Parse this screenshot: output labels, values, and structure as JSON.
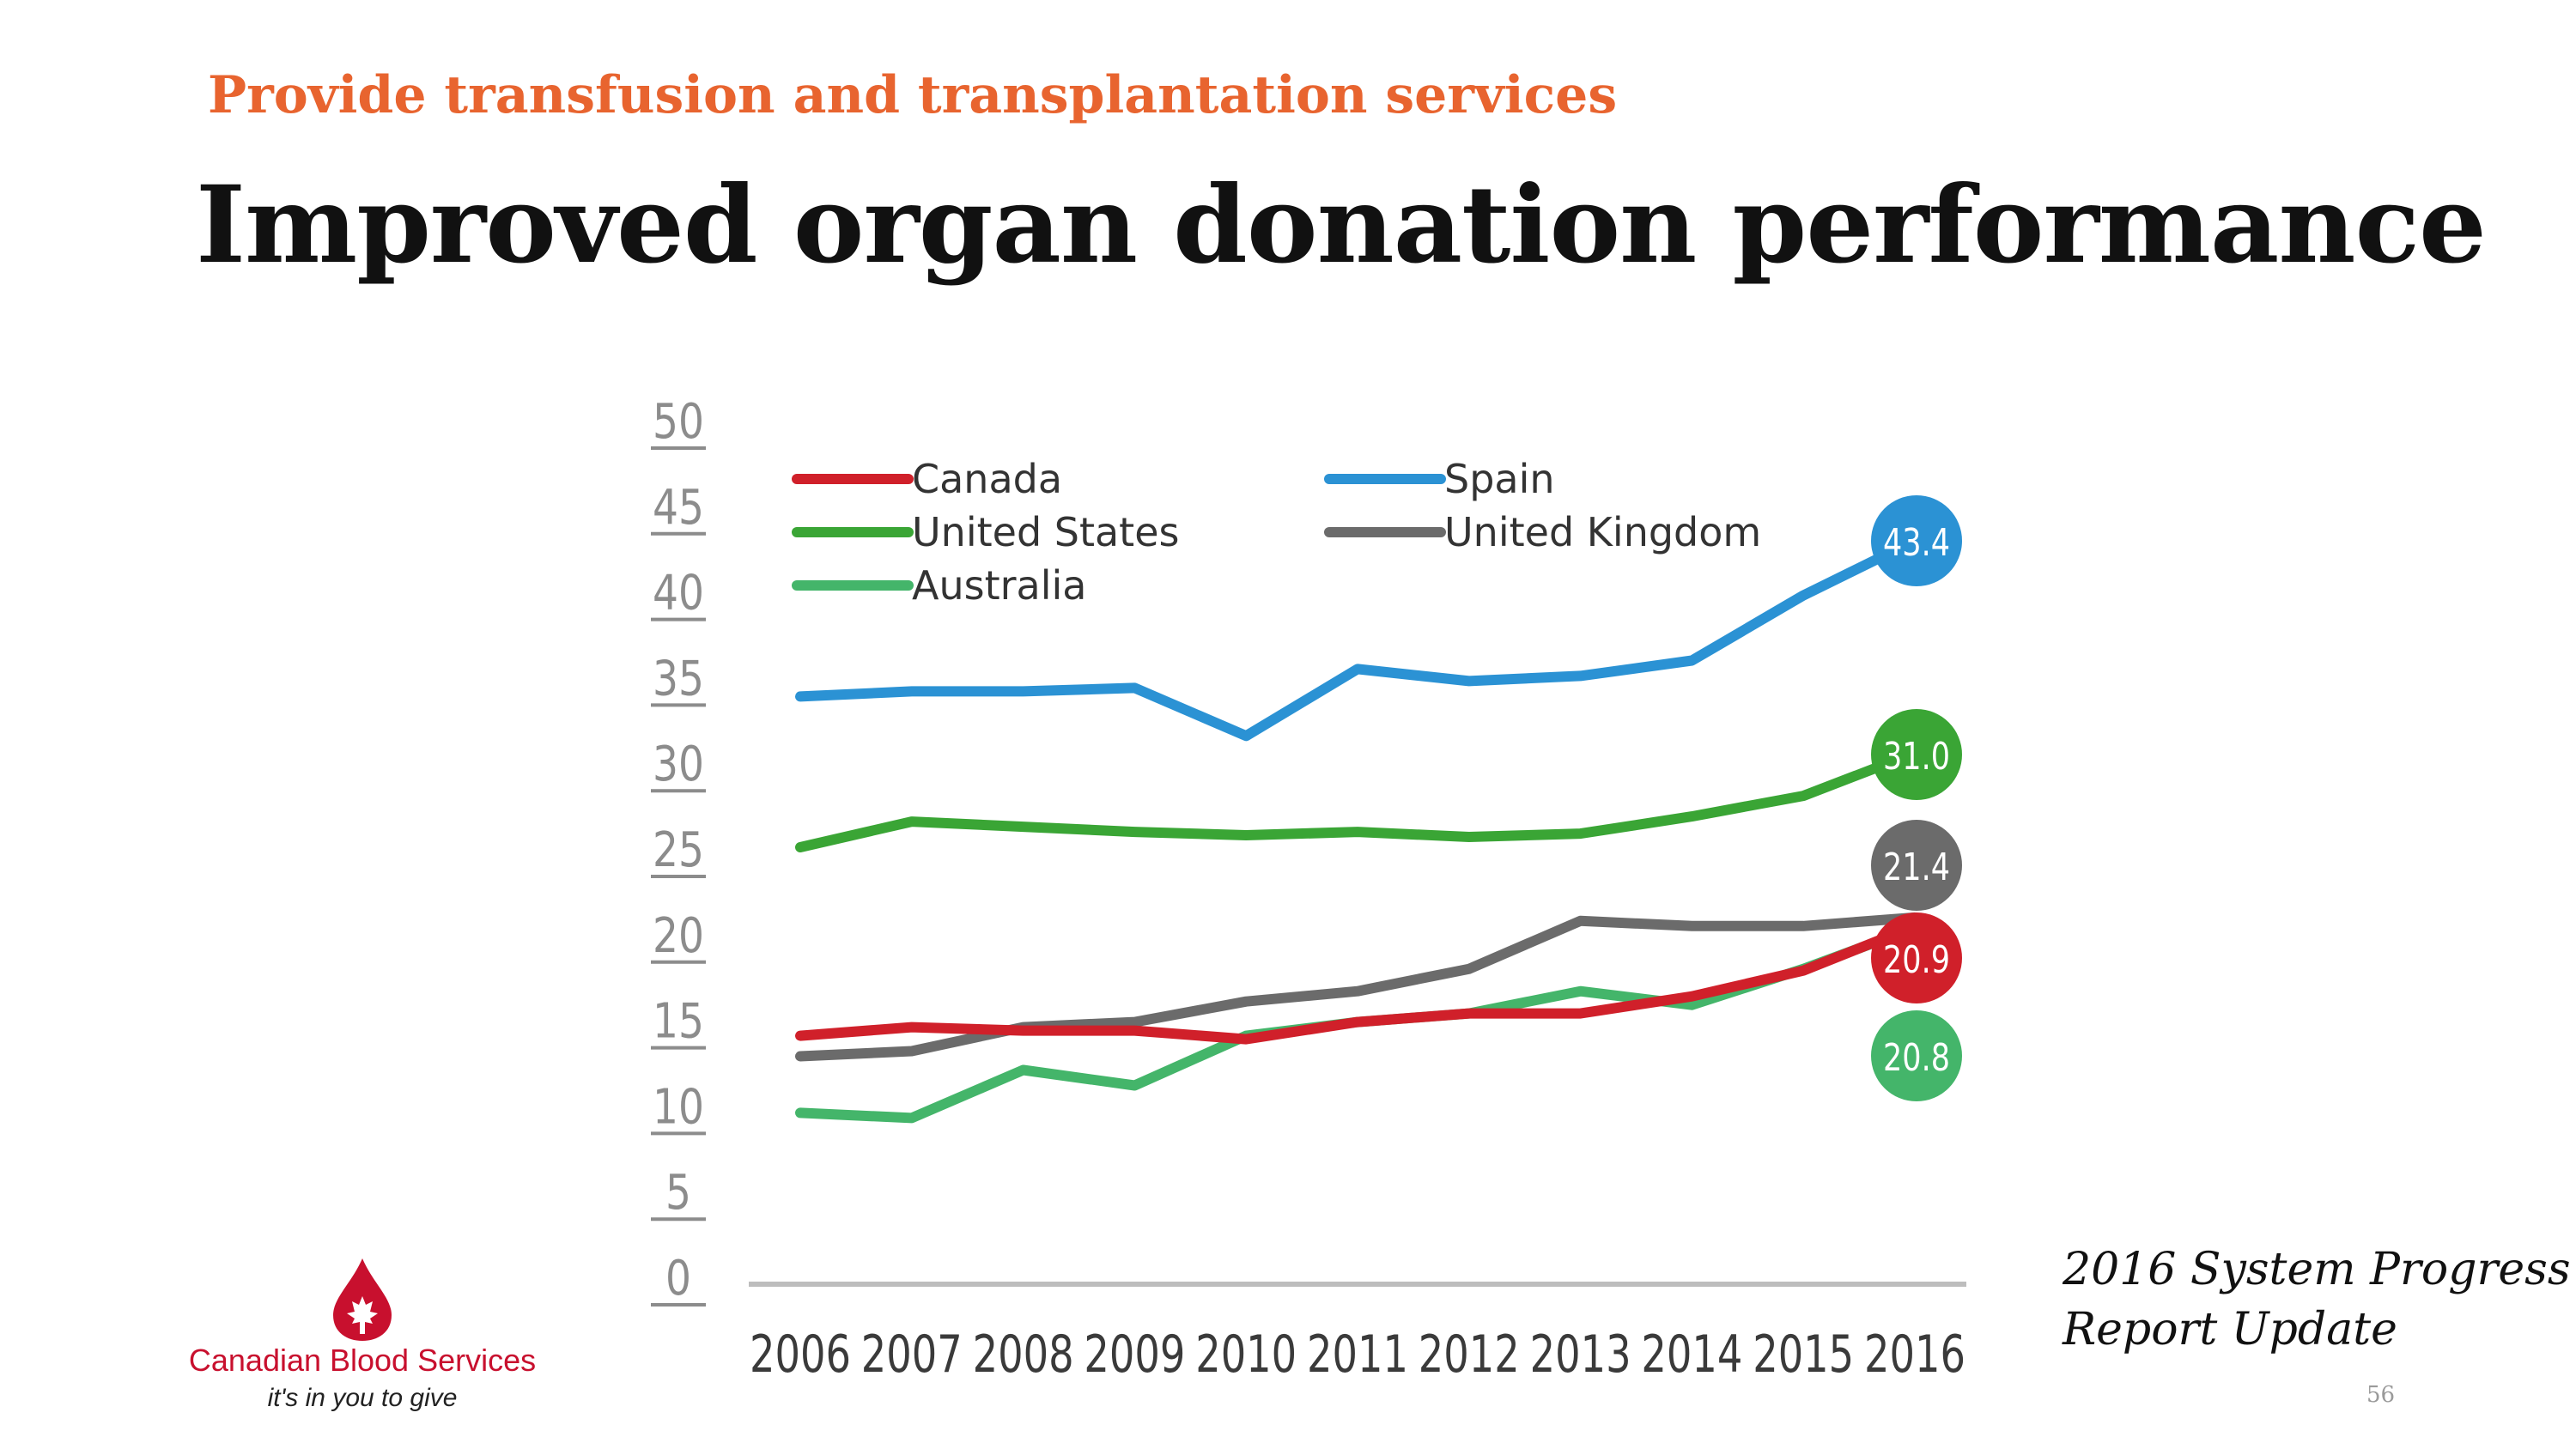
{
  "header": {
    "subtitle": "Provide transfusion and transplantation services",
    "title": "Improved organ donation performance"
  },
  "footer": {
    "report_line1": "2016 System Progress",
    "report_line2": "Report Update",
    "page_number": "56"
  },
  "logo": {
    "name": "Canadian Blood Services",
    "tagline": "it's in you to give",
    "icon": "blood-drop-maple-leaf-icon",
    "color": "#c8102e"
  },
  "chart_data": {
    "type": "line",
    "x": [
      2006,
      2007,
      2008,
      2009,
      2010,
      2011,
      2012,
      2013,
      2014,
      2015,
      2016
    ],
    "ylim": [
      0,
      50
    ],
    "yticks": [
      0,
      5,
      10,
      15,
      20,
      25,
      30,
      35,
      40,
      45,
      50
    ],
    "xlabel": "",
    "ylabel": "",
    "grid": false,
    "legend_placement": "top-left",
    "series": [
      {
        "name": "Canada",
        "color": "#d0202a",
        "values": [
          14.5,
          15.0,
          14.8,
          14.8,
          14.3,
          15.3,
          15.8,
          15.8,
          16.8,
          18.3,
          20.9
        ],
        "end_label": "20.9"
      },
      {
        "name": "Spain",
        "color": "#2b92d4",
        "values": [
          34.3,
          34.6,
          34.6,
          34.8,
          32.0,
          35.9,
          35.2,
          35.5,
          36.4,
          40.2,
          43.4
        ],
        "end_label": "43.4"
      },
      {
        "name": "United States",
        "color": "#3aa535",
        "values": [
          25.5,
          27.0,
          26.7,
          26.4,
          26.2,
          26.4,
          26.1,
          26.3,
          27.3,
          28.5,
          31.0
        ],
        "end_label": "31.0"
      },
      {
        "name": "United Kingdom",
        "color": "#6b6b6b",
        "values": [
          13.3,
          13.6,
          15.0,
          15.3,
          16.5,
          17.1,
          18.4,
          21.2,
          20.9,
          20.9,
          21.4
        ],
        "end_label": "21.4"
      },
      {
        "name": "Australia",
        "color": "#44b56a",
        "values": [
          10.0,
          9.7,
          12.5,
          11.6,
          14.5,
          15.3,
          15.8,
          17.1,
          16.3,
          18.4,
          20.8
        ],
        "end_label": "20.8"
      }
    ]
  }
}
